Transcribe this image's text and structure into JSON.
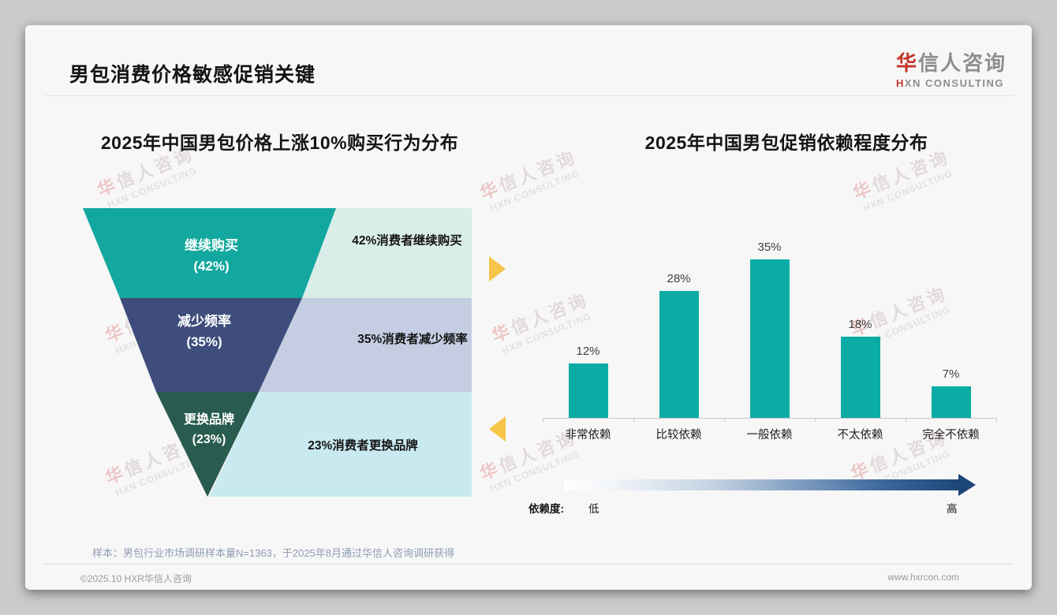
{
  "page": {
    "title": "男包消费价格敏感促销关键",
    "footer_note": "样本：男包行业市场调研样本量N=1363，于2025年8月通过华信人咨询调研获得",
    "copyright": "©2025.10 HXR华信人咨询",
    "website": "www.hxrcon.com"
  },
  "logo": {
    "cn_first": "华",
    "cn_rest": "信人咨询",
    "en_first": "H",
    "en_rest": "XN CONSULTING"
  },
  "watermark": {
    "cn_first": "华",
    "cn_rest": "信人咨询",
    "en": "HXN CONSULTING"
  },
  "colors": {
    "funnel_teal": "#13a89f",
    "funnel_navy": "#3e4d7c",
    "funnel_green": "#295c4e",
    "panel_mint": "#daeee9",
    "panel_lavender": "#c4cde1",
    "panel_cyan": "#c9e9f1",
    "bar_teal": "#0caca6",
    "accent_yellow": "#f6c54a",
    "gradient_dark_blue": "#1d4678",
    "logo_red": "#c43529"
  },
  "chart_data": [
    {
      "type": "funnel",
      "title": "2025年中国男包价格上涨10%购买行为分布",
      "stages": [
        {
          "name": "继续购买",
          "value": 42,
          "label_line1": "继续购买",
          "label_line2": "(42%)",
          "side_label": "42%消费者继续购买",
          "color": "#13a89f",
          "side_color": "#daeee9"
        },
        {
          "name": "减少频率",
          "value": 35,
          "label_line1": "减少频率",
          "label_line2": "(35%)",
          "side_label": "35%消费者减少频率",
          "color": "#3e4d7c",
          "side_color": "#c4cde1"
        },
        {
          "name": "更换品牌",
          "value": 23,
          "label_line1": "更换品牌",
          "label_line2": "(23%)",
          "side_label": "23%消费者更换品牌",
          "color": "#295c4e",
          "side_color": "#c9e9f1"
        }
      ]
    },
    {
      "type": "bar",
      "title": "2025年中国男包促销依赖程度分布",
      "categories": [
        "非常依赖",
        "比较依赖",
        "一般依赖",
        "不太依赖",
        "完全不依赖"
      ],
      "values": [
        12,
        28,
        35,
        18,
        7
      ],
      "value_labels": [
        "12%",
        "28%",
        "35%",
        "18%",
        "7%"
      ],
      "bar_color": "#0caca6",
      "ylim": [
        0,
        40
      ],
      "grid": false,
      "axis_legend": {
        "title": "依赖度:",
        "low": "低",
        "high": "高"
      }
    }
  ]
}
